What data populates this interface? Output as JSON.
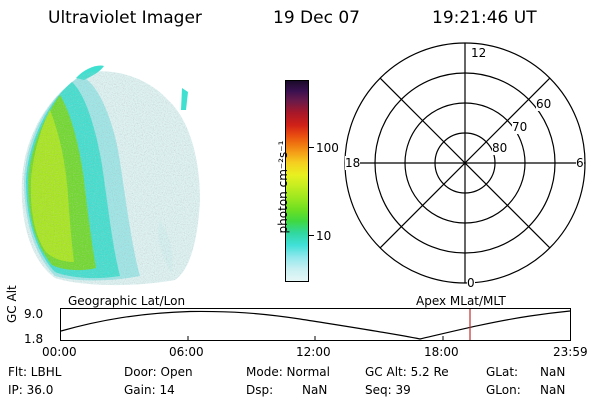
{
  "header": {
    "title": "Ultraviolet Imager",
    "date": "19 Dec 07",
    "time": "19:21:46 UT"
  },
  "colorbar": {
    "label": "photon cm⁻²s⁻¹",
    "ticks": [
      "100",
      "10"
    ]
  },
  "polar": {
    "mlt_labels": {
      "top": "12",
      "left": "18",
      "right": "6",
      "bottom": "0"
    },
    "lat_labels": [
      "60",
      "70",
      "80"
    ]
  },
  "altplot": {
    "ylabel": "GC Alt",
    "yticks": [
      "9.0",
      "1.8"
    ],
    "left_caption": "Geographic Lat/Lon",
    "right_caption": "Apex MLat/MLT",
    "xticks": [
      "00:00",
      "06:00",
      "12:00",
      "18:00",
      "23:59"
    ]
  },
  "info": {
    "flt": "Flt: LBHL",
    "ip": "IP: 36.0",
    "door": "Door: Open",
    "gain": "Gain: 14",
    "mode": "Mode: Normal",
    "dsp_label": "Dsp:",
    "dsp_value": "NaN",
    "gcalt": "GC Alt: 5.2 Re",
    "seq": "Seq: 39",
    "glat_label": "GLat:",
    "glat_value": "NaN",
    "glon_label": "GLon:",
    "glon_value": "NaN"
  },
  "colors": {
    "green": "#7be01a",
    "yellowgreen": "#a8e81a",
    "cyan": "#3fe0d0",
    "lightcyan": "#c9eff0",
    "marker": "#c03030"
  }
}
